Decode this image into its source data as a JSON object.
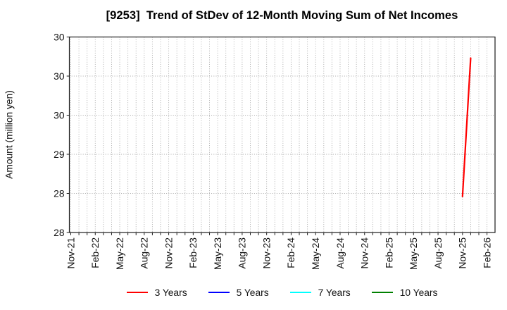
{
  "figure": {
    "title": "[9253]  Trend of StDev of 12-Month Moving Sum of Net Incomes"
  },
  "y_axis": {
    "label": "Amount (million yen)",
    "tick_labels": [
      "30",
      "30",
      "30",
      "29",
      "28",
      "28"
    ],
    "tick_values": [
      30.5,
      30.0,
      29.5,
      29.0,
      28.5,
      28.0
    ]
  },
  "x_axis": {
    "tick_labels": [
      "Nov-21",
      "Feb-22",
      "May-22",
      "Aug-22",
      "Nov-22",
      "Feb-23",
      "May-23",
      "Aug-23",
      "Nov-23",
      "Feb-24",
      "May-24",
      "Aug-24",
      "Nov-24",
      "Feb-25",
      "May-25",
      "Aug-25",
      "Nov-25",
      "Feb-26"
    ],
    "months_between_labels": 3
  },
  "legend": {
    "items": [
      {
        "label": "3 Years",
        "color": "#ff0000"
      },
      {
        "label": "5 Years",
        "color": "#0000ff"
      },
      {
        "label": "7 Years",
        "color": "#00ffff"
      },
      {
        "label": "10 Years",
        "color": "#008000"
      }
    ]
  },
  "chart_data": {
    "type": "line",
    "title": "[9253]  Trend of StDev of 12-Month Moving Sum of Net Incomes",
    "xlabel": "",
    "ylabel": "Amount (million yen)",
    "ylim": [
      28.0,
      30.5
    ],
    "y_tick_values": [
      28.0,
      28.5,
      29.0,
      29.5,
      30.0,
      30.5
    ],
    "y_tick_labels_bottom_to_top": [
      "28",
      "28",
      "29",
      "30",
      "30",
      "30"
    ],
    "x_tick_labels": [
      "Nov-21",
      "Feb-22",
      "May-22",
      "Aug-22",
      "Nov-22",
      "Feb-23",
      "May-23",
      "Aug-23",
      "Nov-23",
      "Feb-24",
      "May-24",
      "Aug-24",
      "Nov-24",
      "Feb-25",
      "May-25",
      "Aug-25",
      "Nov-25",
      "Feb-26"
    ],
    "grid": true,
    "grid_style": "dotted",
    "legend_position": "bottom",
    "series": [
      {
        "name": "3 Years",
        "color": "#ff0000",
        "points": [
          {
            "x": "Nov-25",
            "y": 28.46
          },
          {
            "x": "Dec-25",
            "y": 30.23
          }
        ]
      },
      {
        "name": "5 Years",
        "color": "#0000ff",
        "points": []
      },
      {
        "name": "7 Years",
        "color": "#00ffff",
        "points": []
      },
      {
        "name": "10 Years",
        "color": "#008000",
        "points": []
      }
    ]
  }
}
